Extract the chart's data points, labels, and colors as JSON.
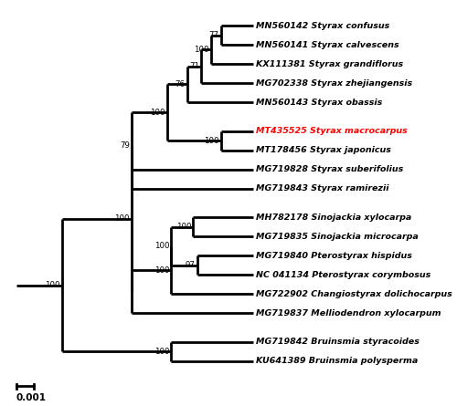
{
  "background_color": "#ffffff",
  "scale_bar_value": "0.001",
  "lw": 2.0,
  "font_size": 6.8,
  "bootstrap_font_size": 6.2,
  "taxa": [
    {
      "name": "MN560142 Styrax confusus",
      "y": 16,
      "color": "black"
    },
    {
      "name": "MN560141 Styrax calvescens",
      "y": 15,
      "color": "black"
    },
    {
      "name": "KX111381 Styrax grandiflorus",
      "y": 14,
      "color": "black"
    },
    {
      "name": "MG702338 Styrax zhejiangensis",
      "y": 13,
      "color": "black"
    },
    {
      "name": "MN560143 Styrax obassis",
      "y": 12,
      "color": "black"
    },
    {
      "name": "MT435525 Styrax macrocarpus",
      "y": 10.5,
      "color": "red"
    },
    {
      "name": "MT178456 Styrax japonicus",
      "y": 9.5,
      "color": "black"
    },
    {
      "name": "MG719828 Styrax suberifolius",
      "y": 8.5,
      "color": "black"
    },
    {
      "name": "MG719843 Styrax ramirezii",
      "y": 7.5,
      "color": "black"
    },
    {
      "name": "MH782178 Sinojackia xylocarpa",
      "y": 6.0,
      "color": "black"
    },
    {
      "name": "MG719835 Sinojackia microcarpa",
      "y": 5.0,
      "color": "black"
    },
    {
      "name": "MG719840 Pterostyrax hispidus",
      "y": 4.0,
      "color": "black"
    },
    {
      "name": "NC 041134 Pterostyrax corymbosus",
      "y": 3.0,
      "color": "black"
    },
    {
      "name": "MG722902 Changiostyrax dolichocarpus",
      "y": 2.0,
      "color": "black"
    },
    {
      "name": "MG719837 Melliodendron xylocarpum",
      "y": 1.0,
      "color": "black"
    },
    {
      "name": "MG719842 Bruinsmia styracoides",
      "y": -0.5,
      "color": "black"
    },
    {
      "name": "KU641389 Bruinsmia polysperma",
      "y": -1.5,
      "color": "black"
    }
  ]
}
